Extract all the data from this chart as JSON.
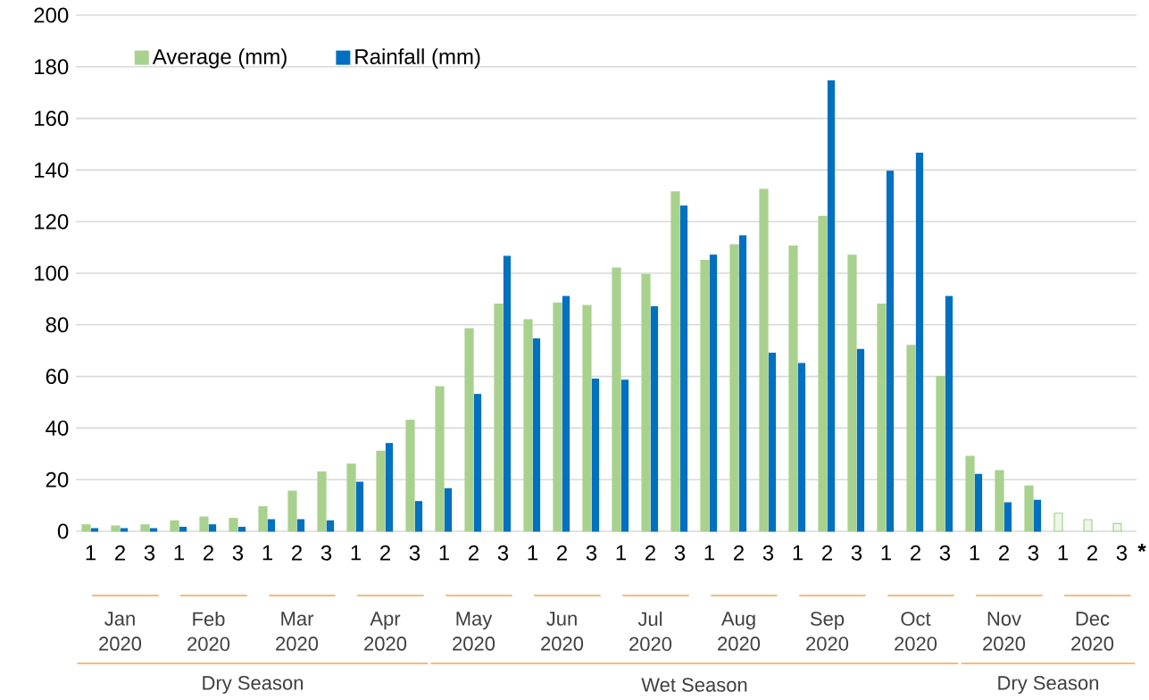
{
  "chart_data": {
    "type": "bar",
    "categories": [
      "1",
      "2",
      "3",
      "1",
      "2",
      "3",
      "1",
      "2",
      "3",
      "1",
      "2",
      "3",
      "1",
      "2",
      "3",
      "1",
      "2",
      "3",
      "1",
      "2",
      "3",
      "1",
      "2",
      "3",
      "1",
      "2",
      "3",
      "1",
      "2",
      "3",
      "1",
      "2",
      "3",
      "1",
      "2",
      "3"
    ],
    "series": [
      {
        "name": "Average (mm)",
        "color": "#a9d18e",
        "values": [
          2.5,
          2,
          2.5,
          4,
          5.5,
          5,
          9.5,
          15.5,
          23,
          26,
          31,
          43,
          56,
          78.5,
          88,
          82,
          88.5,
          87.5,
          102,
          99.5,
          131.5,
          105,
          111,
          132.5,
          110.5,
          122,
          107,
          88,
          72,
          60,
          29,
          23.5,
          17.5,
          7,
          4.5,
          3
        ],
        "colors": [
          "#a9d18e",
          "#a9d18e",
          "#a9d18e",
          "#a9d18e",
          "#a9d18e",
          "#a9d18e",
          "#a9d18e",
          "#a9d18e",
          "#a9d18e",
          "#a9d18e",
          "#a9d18e",
          "#a9d18e",
          "#a9d18e",
          "#a9d18e",
          "#a9d18e",
          "#a9d18e",
          "#a9d18e",
          "#a9d18e",
          "#a9d18e",
          "#a9d18e",
          "#a9d18e",
          "#a9d18e",
          "#a9d18e",
          "#a9d18e",
          "#a9d18e",
          "#a9d18e",
          "#a9d18e",
          "#a9d18e",
          "#a9d18e",
          "#a9d18e",
          "#a9d18e",
          "#a9d18e",
          "#a9d18e",
          "#eef6e9",
          "#eef6e9",
          "#eef6e9"
        ]
      },
      {
        "name": "Rainfall (mm)",
        "color": "#0070c0",
        "values": [
          1,
          1,
          1,
          1.5,
          2.5,
          1.5,
          4.5,
          4.5,
          4,
          19,
          34,
          11.5,
          16.5,
          53,
          106.5,
          74.5,
          91,
          59,
          58.5,
          87,
          126,
          107,
          114.5,
          69,
          65,
          174.5,
          70.5,
          139.5,
          146.5,
          91,
          22,
          11,
          12,
          null,
          null,
          null
        ]
      }
    ],
    "ylim": [
      0,
      200
    ],
    "yticks": [
      0,
      20,
      40,
      60,
      80,
      100,
      120,
      140,
      160,
      180,
      200
    ],
    "grid": "y",
    "legend": "top left",
    "annotations": [
      "Jan 2020",
      "Feb 2020",
      "Mar 2020",
      "Apr 2020",
      "May 2020",
      "Jun 2020",
      "Jul 2020",
      "Aug 2020",
      "Sep 2020",
      "Oct 2020",
      "Nov 2020",
      "Dec 2020",
      "Dry Season",
      "Wet Season",
      "Dry Season",
      "*"
    ]
  }
}
